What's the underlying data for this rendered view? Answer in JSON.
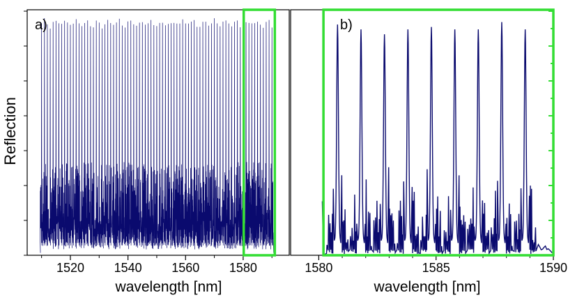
{
  "figure": {
    "ylabel": "Reflection",
    "line_color": "#0a0a6e",
    "box_color": "#33dd33"
  },
  "chart_data": [
    {
      "type": "line",
      "panel_label": "a)",
      "xlabel": "wavelength [nm]",
      "ylabel": "Reflection",
      "xlim": [
        1505,
        1596
      ],
      "ylim": [
        0,
        1
      ],
      "x_ticks": [
        1520,
        1540,
        1560,
        1580
      ],
      "x_tick_labels": [
        "1520",
        "1540",
        "1560",
        "1580"
      ],
      "grid": false,
      "series": [
        {
          "peak_x_range": [
            1510,
            1590
          ],
          "peak_spacing": 1.0,
          "peak_max": 0.97,
          "peak_min": 0.92,
          "sidelobe_level": 0.32
        }
      ],
      "highlight_region": [
        1580.2,
        1591
      ]
    },
    {
      "type": "line",
      "panel_label": "b)",
      "xlabel": "wavelength [nm]",
      "xlim": [
        1578.8,
        1590
      ],
      "ylim": [
        0,
        1
      ],
      "x_ticks": [
        1580,
        1585,
        1590
      ],
      "x_tick_labels": [
        "1580",
        "1585",
        "1590"
      ],
      "grid": false,
      "series": [
        {
          "peaks": [
            {
              "x": 1580.8,
              "y": 0.94
            },
            {
              "x": 1581.8,
              "y": 0.92
            },
            {
              "x": 1582.8,
              "y": 0.9
            },
            {
              "x": 1583.8,
              "y": 0.92
            },
            {
              "x": 1584.8,
              "y": 0.93
            },
            {
              "x": 1585.8,
              "y": 0.92
            },
            {
              "x": 1586.8,
              "y": 0.92
            },
            {
              "x": 1587.8,
              "y": 0.95
            },
            {
              "x": 1588.8,
              "y": 0.92
            }
          ],
          "sidelobe_level": 0.36
        }
      ],
      "highlight_region": [
        1580.2,
        1590
      ]
    }
  ]
}
